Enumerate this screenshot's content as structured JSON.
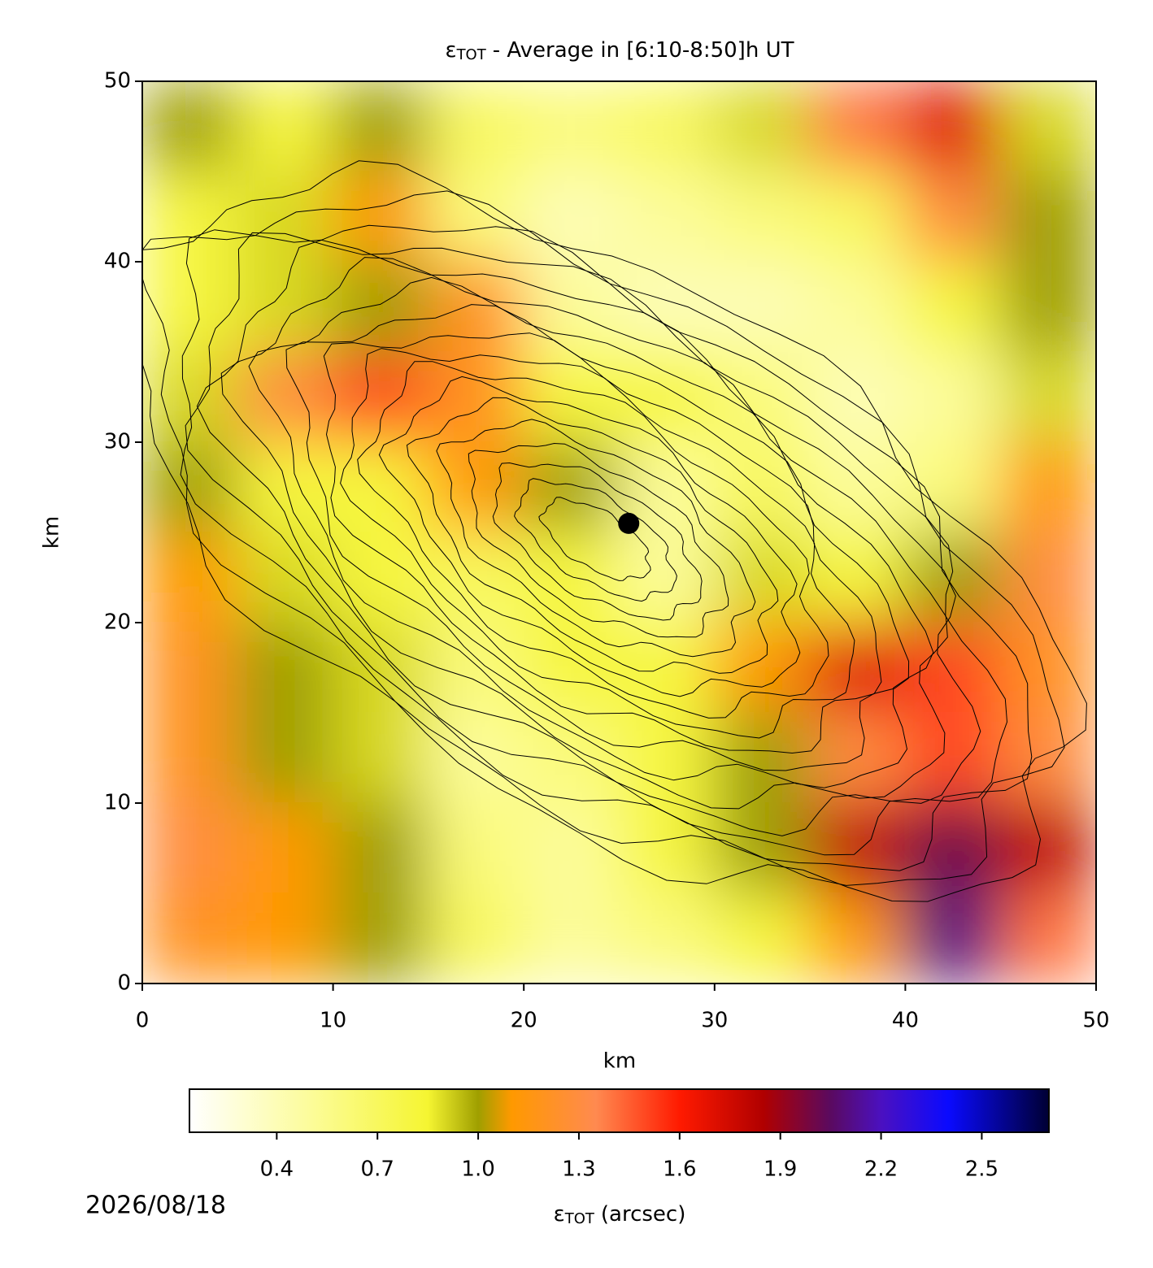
{
  "chart_data": {
    "type": "heatmap",
    "title": {
      "symbol": "ε",
      "subscript": "TOT",
      "text": "- Average in [6:10-8:50]h UT"
    },
    "xlabel": "km",
    "ylabel": "km",
    "xlim": [
      0,
      50
    ],
    "ylim": [
      0,
      50
    ],
    "xticks": [
      0,
      10,
      20,
      30,
      40,
      50
    ],
    "yticks": [
      0,
      10,
      20,
      30,
      40,
      50
    ],
    "x": [
      2.5,
      7.5,
      12.5,
      17.5,
      22.5,
      27.5,
      32.5,
      37.5,
      42.5,
      47.5
    ],
    "y": [
      47.5,
      42.5,
      37.5,
      32.5,
      27.5,
      22.5,
      17.5,
      12.5,
      7.5,
      2.5
    ],
    "z": [
      [
        1.0,
        0.8,
        1.0,
        0.7,
        0.6,
        0.7,
        0.9,
        1.4,
        1.7,
        0.9
      ],
      [
        0.8,
        0.9,
        1.1,
        0.6,
        0.4,
        0.5,
        0.6,
        0.7,
        1.3,
        1.0
      ],
      [
        0.8,
        0.9,
        1.0,
        1.2,
        0.5,
        0.4,
        0.4,
        0.5,
        0.8,
        1.0
      ],
      [
        0.9,
        1.3,
        1.5,
        1.2,
        0.8,
        0.8,
        0.6,
        0.4,
        0.5,
        0.9
      ],
      [
        1.0,
        0.8,
        0.8,
        1.1,
        1.0,
        0.5,
        0.7,
        0.5,
        0.6,
        1.1
      ],
      [
        1.1,
        0.9,
        0.8,
        0.7,
        0.8,
        0.5,
        0.9,
        0.8,
        1.0,
        1.3
      ],
      [
        1.2,
        1.0,
        0.9,
        0.6,
        0.8,
        0.8,
        1.1,
        1.7,
        1.5,
        1.2
      ],
      [
        1.2,
        1.0,
        0.9,
        0.5,
        0.6,
        0.8,
        1.0,
        1.3,
        1.5,
        1.3
      ],
      [
        1.3,
        1.1,
        1.0,
        0.6,
        0.5,
        0.8,
        1.0,
        1.8,
        2.0,
        1.8
      ],
      [
        1.2,
        1.1,
        1.0,
        0.7,
        0.5,
        0.6,
        0.8,
        1.1,
        2.1,
        1.4
      ]
    ],
    "marker": {
      "x": 25.5,
      "y": 25.5,
      "color": "#000000"
    },
    "colorbar": {
      "label": {
        "symbol": "ε",
        "subscript": "TOT",
        "text": "(arcsec)"
      },
      "clim": [
        0.14,
        2.7
      ],
      "ticks": [
        0.4,
        0.7,
        {
          "value": 1.0,
          "label": "1.0"
        },
        1.3,
        1.6,
        1.9,
        2.2,
        2.5
      ],
      "colormap": [
        {
          "value": 0.14,
          "color": "#ffffff"
        },
        {
          "value": 0.5,
          "color": "#fcfc9a"
        },
        {
          "value": 0.85,
          "color": "#f5f531"
        },
        {
          "value": 1.0,
          "color": "#9f9f00"
        },
        {
          "value": 1.1,
          "color": "#ff9900"
        },
        {
          "value": 1.35,
          "color": "#ff8a50"
        },
        {
          "value": 1.6,
          "color": "#ff1a00"
        },
        {
          "value": 1.85,
          "color": "#b00000"
        },
        {
          "value": 2.05,
          "color": "#5a0a60"
        },
        {
          "value": 2.2,
          "color": "#4b10c0"
        },
        {
          "value": 2.4,
          "color": "#0a0aff"
        },
        {
          "value": 2.7,
          "color": "#000033"
        }
      ]
    },
    "date": "2026/08/18"
  }
}
